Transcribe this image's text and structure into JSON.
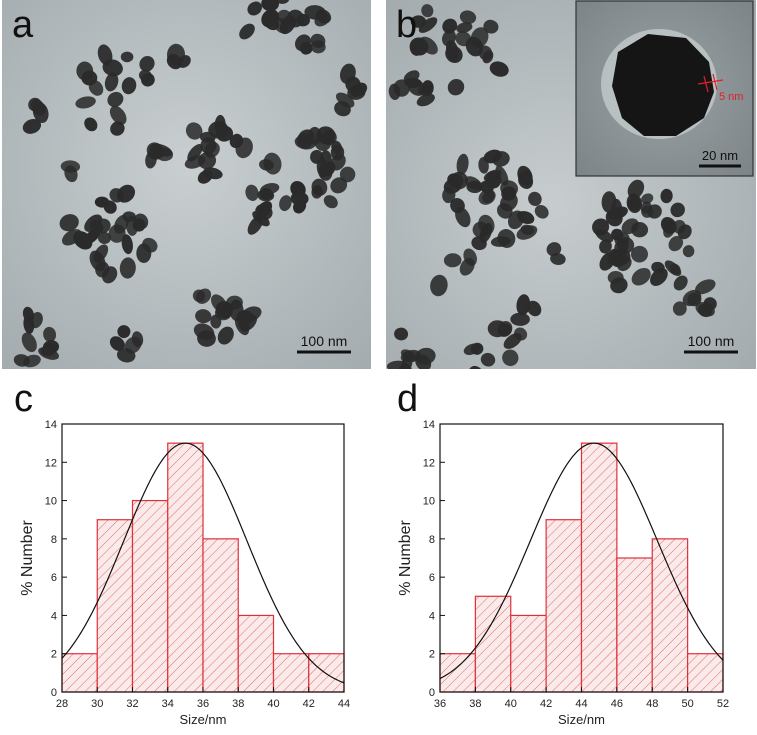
{
  "panels": {
    "a": {
      "letter": "a",
      "scale_bar_label": "100 nm"
    },
    "b": {
      "letter": "b",
      "scale_bar_label": "100 nm",
      "inset": {
        "scale_bar_label": "20 nm",
        "shell_label": "5 nm"
      }
    },
    "c": {
      "letter": "c"
    },
    "d": {
      "letter": "d"
    }
  },
  "colors": {
    "bar_edge": "#e0303a",
    "hatch": "#e06a6a",
    "bar_fill": "#fbeaea",
    "fit_curve": "#111111",
    "particle": "#2a2a2a",
    "tem_bg": "#a9b1b4"
  },
  "chart_data": [
    {
      "type": "bar",
      "panel": "c",
      "categories": [
        "28-30",
        "30-32",
        "32-34",
        "34-36",
        "36-38",
        "38-40",
        "40-42",
        "42-44"
      ],
      "bin_edges": [
        28,
        30,
        32,
        34,
        36,
        38,
        40,
        42,
        44
      ],
      "values": [
        2,
        9,
        10,
        13,
        8,
        4,
        2,
        2
      ],
      "fit": {
        "type": "gaussian",
        "peak_x": 35,
        "peak_y": 13,
        "sigma": 3.5
      },
      "xlabel": "Size/nm",
      "ylabel": "% Number",
      "xlim": [
        28,
        44
      ],
      "ylim": [
        0,
        14
      ],
      "xticks": [
        28,
        30,
        32,
        34,
        36,
        38,
        40,
        42,
        44
      ],
      "yticks": [
        0,
        2,
        4,
        6,
        8,
        10,
        12,
        14
      ],
      "grid": false
    },
    {
      "type": "bar",
      "panel": "d",
      "categories": [
        "36-38",
        "38-40",
        "40-42",
        "42-44",
        "44-46",
        "46-48",
        "48-50",
        "50-52"
      ],
      "bin_edges": [
        36,
        38,
        40,
        42,
        44,
        46,
        48,
        50,
        52
      ],
      "values": [
        2,
        5,
        4,
        9,
        13,
        7,
        8,
        2
      ],
      "fit": {
        "type": "gaussian",
        "peak_x": 44.7,
        "peak_y": 13,
        "sigma": 3.6
      },
      "xlabel": "Size/nm",
      "ylabel": "% Number",
      "xlim": [
        36,
        52
      ],
      "ylim": [
        0,
        14
      ],
      "xticks": [
        36,
        38,
        40,
        42,
        44,
        46,
        48,
        50,
        52
      ],
      "yticks": [
        0,
        2,
        4,
        6,
        8,
        10,
        12,
        14
      ],
      "grid": false
    }
  ]
}
